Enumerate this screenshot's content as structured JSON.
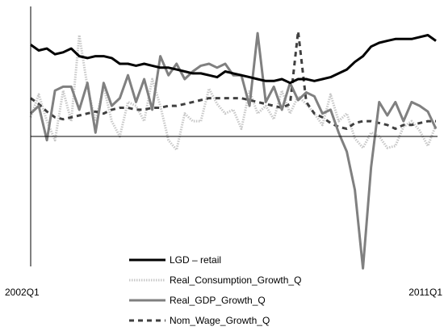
{
  "chart_data": {
    "type": "line",
    "title": "",
    "xlabel": "",
    "ylabel": "",
    "x_start_label": "2002Q1",
    "x_end_label": "2011Q1",
    "ylim": [
      -3.4,
      3.4
    ],
    "grid": false,
    "legend_position": "bottom",
    "series": [
      {
        "name": "LGD – retail",
        "color": "#000000",
        "style": "solid",
        "values": [
          2.4,
          2.25,
          2.3,
          2.15,
          2.2,
          2.3,
          2.1,
          2.05,
          2.1,
          2.1,
          2.05,
          1.9,
          1.9,
          1.85,
          1.9,
          1.85,
          1.8,
          1.8,
          1.75,
          1.7,
          1.65,
          1.65,
          1.6,
          1.55,
          1.7,
          1.65,
          1.6,
          1.55,
          1.5,
          1.45,
          1.45,
          1.5,
          1.4,
          1.5,
          1.5,
          1.45,
          1.5,
          1.55,
          1.65,
          1.75,
          1.95,
          2.1,
          2.35,
          2.45,
          2.5,
          2.55,
          2.55,
          2.55,
          2.6,
          2.65,
          2.5
        ]
      },
      {
        "name": "Real_Consumption_Growth_Q",
        "color": "#c8c8c8",
        "style": "dotted",
        "values": [
          0.5,
          1.1,
          0.4,
          -0.1,
          1.2,
          0.4,
          2.65,
          1.3,
          0.4,
          1.3,
          0.4,
          0.0,
          0.9,
          0.8,
          0.4,
          1.5,
          0.8,
          -0.1,
          -0.35,
          0.6,
          0.4,
          0.4,
          1.25,
          0.85,
          0.6,
          0.7,
          0.2,
          1.2,
          0.6,
          0.8,
          0.45,
          1.2,
          0.6,
          1.05,
          0.85,
          0.6,
          0.3,
          1.1,
          0.4,
          0.6,
          -0.05,
          -0.3,
          0.1,
          0.0,
          -0.3,
          -0.25,
          0.25,
          0.4,
          0.15,
          -0.25,
          0.3
        ]
      },
      {
        "name": "Real_GDP_Growth_Q",
        "color": "#808080",
        "style": "solid",
        "values": [
          0.6,
          0.8,
          -0.1,
          1.2,
          1.3,
          1.3,
          0.7,
          1.4,
          0.1,
          1.4,
          0.8,
          1.0,
          1.6,
          0.9,
          1.5,
          0.7,
          2.1,
          1.6,
          1.9,
          1.5,
          1.7,
          1.85,
          1.9,
          1.8,
          1.9,
          1.6,
          1.6,
          0.8,
          2.7,
          0.9,
          1.3,
          0.7,
          1.4,
          0.95,
          1.15,
          1.05,
          0.6,
          0.7,
          0.1,
          -0.4,
          -1.4,
          -3.45,
          -0.8,
          0.9,
          0.55,
          0.9,
          0.4,
          0.9,
          0.8,
          0.65,
          0.2
        ]
      },
      {
        "name": "Nom_Wage_Growth_Q",
        "color": "#404040",
        "style": "dashed",
        "values": [
          1.0,
          0.85,
          0.65,
          0.5,
          0.45,
          0.5,
          0.55,
          0.6,
          0.65,
          0.6,
          0.7,
          0.75,
          0.75,
          0.7,
          0.7,
          0.75,
          0.75,
          0.8,
          0.8,
          0.85,
          0.9,
          0.95,
          1.0,
          1.0,
          1.0,
          1.0,
          1.0,
          0.95,
          0.9,
          0.85,
          0.8,
          0.75,
          0.85,
          2.75,
          0.9,
          0.6,
          0.5,
          0.35,
          0.25,
          0.2,
          0.35,
          0.4,
          0.4,
          0.35,
          0.3,
          0.2,
          0.3,
          0.3,
          0.35,
          0.4,
          0.4
        ]
      }
    ]
  }
}
